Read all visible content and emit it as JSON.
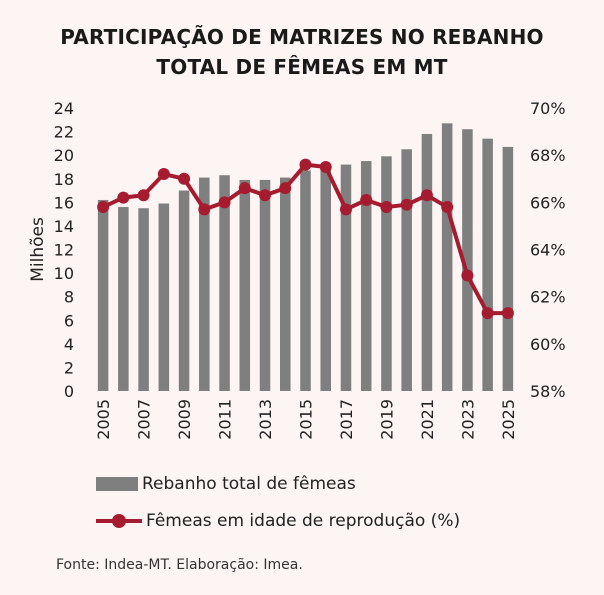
{
  "title": {
    "line1": "PARTICIPAÇÃO DE MATRIZES NO REBANHO",
    "line2": "TOTAL DE FÊMEAS EM MT"
  },
  "legend": {
    "bar_label": "Rebanho total de fêmeas",
    "line_label": "Fêmeas em idade de reprodução (%)"
  },
  "source": "Fonte: Indea-MT. Elaboração: Imea.",
  "colors": {
    "bar": "#7f7f7f",
    "line": "#a51c30",
    "background": "#fdf4f4"
  },
  "chart_data": {
    "type": "bar",
    "title": "PARTICIPAÇÃO DE MATRIZES NO REBANHO TOTAL DE FÊMEAS EM MT",
    "categories": [
      "2005",
      "2006",
      "2007",
      "2008",
      "2009",
      "2010",
      "2011",
      "2012",
      "2013",
      "2014",
      "2015",
      "2016",
      "2017",
      "2018",
      "2019",
      "2020",
      "2021",
      "2022",
      "2023",
      "2024",
      "2025"
    ],
    "x_tick_labels": [
      "2005",
      "2007",
      "2009",
      "2011",
      "2013",
      "2015",
      "2017",
      "2019",
      "2021",
      "2023",
      "2025"
    ],
    "ylabel": "Milhões",
    "ylim": [
      0,
      24
    ],
    "y_ticks": [
      0,
      2,
      4,
      6,
      8,
      10,
      12,
      14,
      16,
      18,
      20,
      22,
      24
    ],
    "y2lim": [
      58,
      70
    ],
    "y2_ticks": [
      "58%",
      "60%",
      "62%",
      "64%",
      "66%",
      "68%",
      "70%"
    ],
    "grid": false,
    "series": [
      {
        "name": "Rebanho total de fêmeas",
        "type": "bar",
        "axis": "left",
        "values": [
          16.2,
          15.6,
          15.5,
          15.9,
          17.0,
          18.1,
          18.3,
          17.9,
          17.9,
          18.1,
          18.7,
          18.9,
          19.2,
          19.5,
          19.9,
          20.5,
          21.8,
          22.7,
          22.2,
          21.4,
          20.7
        ]
      },
      {
        "name": "Fêmeas em idade de reprodução (%)",
        "type": "line",
        "axis": "right",
        "values": [
          65.8,
          66.2,
          66.3,
          67.2,
          67.0,
          65.7,
          66.0,
          66.6,
          66.3,
          66.6,
          67.6,
          67.5,
          65.7,
          66.1,
          65.8,
          65.9,
          66.3,
          65.8,
          62.9,
          61.3,
          61.3
        ]
      }
    ],
    "legend_position": "bottom"
  }
}
